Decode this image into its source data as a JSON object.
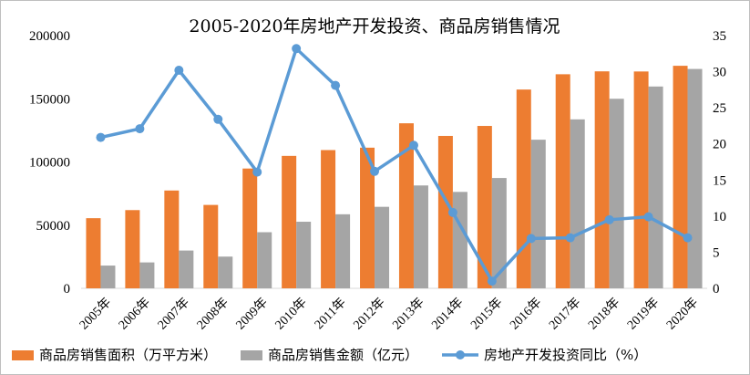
{
  "chart_data": {
    "type": "bar",
    "title": "2005-2020年房地产开发投资、商品房销售情况",
    "categories": [
      "2005年",
      "2006年",
      "2007年",
      "2008年",
      "2009年",
      "2010年",
      "2011年",
      "2012年",
      "2013年",
      "2014年",
      "2015年",
      "2016年",
      "2017年",
      "2018年",
      "2019年",
      "2020年"
    ],
    "series": [
      {
        "name": "商品房销售面积（万平方米）",
        "chart_type": "bar",
        "axis": "left",
        "color": "#ED7D31",
        "values": [
          55500,
          61900,
          77400,
          66000,
          94800,
          104800,
          109400,
          111300,
          130600,
          120600,
          128500,
          157300,
          169400,
          171700,
          171600,
          176100
        ]
      },
      {
        "name": "商品房销售金额（亿元）",
        "chart_type": "bar",
        "axis": "left",
        "color": "#A5A5A5",
        "values": [
          18000,
          20500,
          29900,
          25100,
          44400,
          52700,
          58600,
          64500,
          81400,
          76300,
          87300,
          117600,
          133700,
          150000,
          159700,
          173600
        ]
      },
      {
        "name": "房地产开发投资同比（%）",
        "chart_type": "line",
        "axis": "right",
        "color": "#5B9BD5",
        "values": [
          20.9,
          22.1,
          30.2,
          23.4,
          16.1,
          33.2,
          28.1,
          16.2,
          19.8,
          10.5,
          1.0,
          6.9,
          7.0,
          9.5,
          9.9,
          7.0
        ]
      }
    ],
    "y_left": {
      "min": 0,
      "max": 200000,
      "ticks": [
        0,
        50000,
        100000,
        150000,
        200000
      ]
    },
    "y_right": {
      "min": 0,
      "max": 35,
      "ticks": [
        0,
        5,
        10,
        15,
        20,
        25,
        30,
        35
      ]
    },
    "grid": false,
    "legend_position": "bottom"
  }
}
